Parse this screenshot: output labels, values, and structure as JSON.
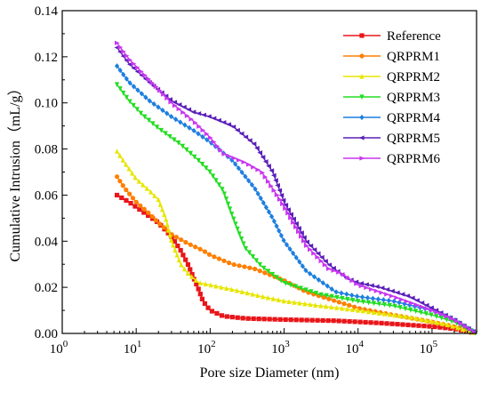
{
  "chart_data": {
    "type": "line",
    "xlabel": "Pore size Diameter (nm)",
    "ylabel": "Cumulative Intrusion（mL/g）",
    "x_scale": "log",
    "xlim": [
      1,
      400000
    ],
    "ylim": [
      0,
      0.14
    ],
    "x_ticks": [
      1,
      10,
      100,
      1000,
      10000,
      100000
    ],
    "x_tick_labels": [
      {
        "base": "10",
        "exp": "0"
      },
      {
        "base": "10",
        "exp": "1"
      },
      {
        "base": "10",
        "exp": "2"
      },
      {
        "base": "10",
        "exp": "3"
      },
      {
        "base": "10",
        "exp": "4"
      },
      {
        "base": "10",
        "exp": "5"
      }
    ],
    "y_ticks": [
      0,
      0.02,
      0.04,
      0.06,
      0.08,
      0.1,
      0.12,
      0.14
    ],
    "y_tick_labels": [
      "0.00",
      "0.02",
      "0.04",
      "0.06",
      "0.08",
      "0.10",
      "0.12",
      "0.14"
    ],
    "legend_position": "top-right",
    "grid": false,
    "series": [
      {
        "name": "Reference",
        "color": "#e8161a",
        "marker": "square",
        "points": [
          [
            5.5,
            0.06
          ],
          [
            8,
            0.057
          ],
          [
            12,
            0.053
          ],
          [
            20,
            0.048
          ],
          [
            30,
            0.042
          ],
          [
            40,
            0.036
          ],
          [
            50,
            0.03
          ],
          [
            60,
            0.024
          ],
          [
            70,
            0.019
          ],
          [
            80,
            0.014
          ],
          [
            100,
            0.01
          ],
          [
            150,
            0.0075
          ],
          [
            300,
            0.0065
          ],
          [
            1000,
            0.006
          ],
          [
            5000,
            0.0055
          ],
          [
            20000,
            0.0045
          ],
          [
            100000,
            0.003
          ],
          [
            200000,
            0.002
          ],
          [
            400000,
            0.0
          ]
        ]
      },
      {
        "name": "QRPRM1",
        "color": "#ff7f00",
        "marker": "circle",
        "points": [
          [
            5.5,
            0.068
          ],
          [
            7,
            0.063
          ],
          [
            10,
            0.057
          ],
          [
            15,
            0.052
          ],
          [
            20,
            0.048
          ],
          [
            30,
            0.043
          ],
          [
            50,
            0.039
          ],
          [
            80,
            0.036
          ],
          [
            100,
            0.034
          ],
          [
            200,
            0.03
          ],
          [
            400,
            0.028
          ],
          [
            1000,
            0.023
          ],
          [
            2000,
            0.018
          ],
          [
            5000,
            0.014
          ],
          [
            10000,
            0.011
          ],
          [
            30000,
            0.008
          ],
          [
            100000,
            0.005
          ],
          [
            200000,
            0.003
          ],
          [
            400000,
            0.0
          ]
        ]
      },
      {
        "name": "QRPRM2",
        "color": "#e6e600",
        "marker": "triangle-up",
        "points": [
          [
            5.5,
            0.079
          ],
          [
            7,
            0.074
          ],
          [
            10,
            0.067
          ],
          [
            15,
            0.062
          ],
          [
            20,
            0.058
          ],
          [
            25,
            0.05
          ],
          [
            30,
            0.04
          ],
          [
            40,
            0.03
          ],
          [
            50,
            0.026
          ],
          [
            70,
            0.022
          ],
          [
            100,
            0.021
          ],
          [
            200,
            0.019
          ],
          [
            500,
            0.016
          ],
          [
            1000,
            0.014
          ],
          [
            3000,
            0.012
          ],
          [
            10000,
            0.01
          ],
          [
            50000,
            0.007
          ],
          [
            150000,
            0.004
          ],
          [
            400000,
            0.0
          ]
        ]
      },
      {
        "name": "QRPRM3",
        "color": "#22dd22",
        "marker": "triangle-down",
        "points": [
          [
            5.5,
            0.108
          ],
          [
            8,
            0.101
          ],
          [
            12,
            0.095
          ],
          [
            20,
            0.089
          ],
          [
            40,
            0.082
          ],
          [
            70,
            0.075
          ],
          [
            100,
            0.07
          ],
          [
            150,
            0.062
          ],
          [
            200,
            0.051
          ],
          [
            250,
            0.043
          ],
          [
            300,
            0.037
          ],
          [
            500,
            0.029
          ],
          [
            1000,
            0.022
          ],
          [
            3000,
            0.017
          ],
          [
            10000,
            0.014
          ],
          [
            30000,
            0.012
          ],
          [
            100000,
            0.008
          ],
          [
            200000,
            0.005
          ],
          [
            400000,
            0.0
          ]
        ]
      },
      {
        "name": "QRPRM4",
        "color": "#1e7fe0",
        "marker": "diamond",
        "points": [
          [
            5.5,
            0.116
          ],
          [
            8,
            0.109
          ],
          [
            15,
            0.101
          ],
          [
            30,
            0.094
          ],
          [
            60,
            0.088
          ],
          [
            100,
            0.083
          ],
          [
            200,
            0.075
          ],
          [
            400,
            0.063
          ],
          [
            700,
            0.05
          ],
          [
            1000,
            0.04
          ],
          [
            2000,
            0.027
          ],
          [
            5000,
            0.018
          ],
          [
            10000,
            0.016
          ],
          [
            30000,
            0.014
          ],
          [
            100000,
            0.01
          ],
          [
            200000,
            0.006
          ],
          [
            400000,
            0.0
          ]
        ]
      },
      {
        "name": "QRPRM5",
        "color": "#5a1fb8",
        "marker": "triangle-left",
        "points": [
          [
            5.5,
            0.124
          ],
          [
            8,
            0.117
          ],
          [
            15,
            0.109
          ],
          [
            30,
            0.101
          ],
          [
            60,
            0.096
          ],
          [
            100,
            0.094
          ],
          [
            200,
            0.09
          ],
          [
            400,
            0.082
          ],
          [
            700,
            0.07
          ],
          [
            1000,
            0.057
          ],
          [
            2000,
            0.04
          ],
          [
            4000,
            0.03
          ],
          [
            7000,
            0.024
          ],
          [
            10000,
            0.022
          ],
          [
            20000,
            0.02
          ],
          [
            50000,
            0.016
          ],
          [
            100000,
            0.011
          ],
          [
            200000,
            0.006
          ],
          [
            400000,
            0.0
          ]
        ]
      },
      {
        "name": "QRPRM6",
        "color": "#c936f0",
        "marker": "triangle-right",
        "points": [
          [
            5.5,
            0.126
          ],
          [
            8,
            0.119
          ],
          [
            15,
            0.11
          ],
          [
            30,
            0.1
          ],
          [
            60,
            0.092
          ],
          [
            100,
            0.085
          ],
          [
            150,
            0.078
          ],
          [
            300,
            0.074
          ],
          [
            500,
            0.07
          ],
          [
            800,
            0.06
          ],
          [
            1000,
            0.055
          ],
          [
            2000,
            0.038
          ],
          [
            4000,
            0.028
          ],
          [
            6000,
            0.026
          ],
          [
            10000,
            0.021
          ],
          [
            30000,
            0.016
          ],
          [
            100000,
            0.01
          ],
          [
            200000,
            0.006
          ],
          [
            400000,
            0.0
          ]
        ]
      }
    ]
  }
}
